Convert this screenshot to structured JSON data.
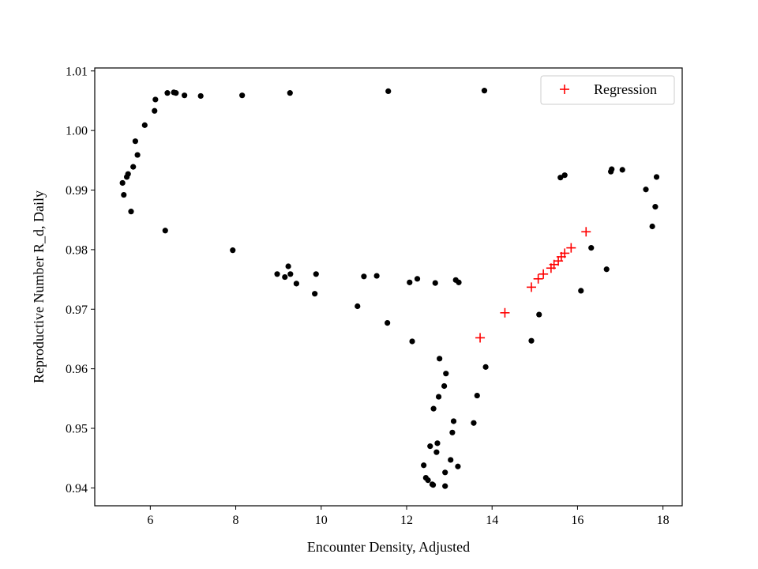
{
  "chart_data": {
    "type": "scatter",
    "title": "",
    "xlabel": "Encounter Density, Adjusted",
    "ylabel": "Reproductive Number R_d, Daily",
    "xlim": [
      4.7,
      18.45
    ],
    "ylim": [
      0.937,
      1.0105
    ],
    "xticks": [
      6,
      8,
      10,
      12,
      14,
      16,
      18
    ],
    "xtick_labels": [
      "6",
      "8",
      "10",
      "12",
      "14",
      "16",
      "18"
    ],
    "yticks": [
      0.94,
      0.95,
      0.96,
      0.97,
      0.98,
      0.99,
      1.0,
      1.01
    ],
    "ytick_labels": [
      "0.94",
      "0.95",
      "0.96",
      "0.97",
      "0.98",
      "0.99",
      "1.00",
      "1.01"
    ],
    "grid": false,
    "legend_position": "top-right",
    "series": [
      {
        "marker": "dot",
        "color": "#000000",
        "points": [
          [
            5.35,
            0.9912
          ],
          [
            5.38,
            0.9892
          ],
          [
            5.45,
            0.9922
          ],
          [
            5.48,
            0.9927
          ],
          [
            5.55,
            0.9864
          ],
          [
            5.6,
            0.9939
          ],
          [
            5.65,
            0.9982
          ],
          [
            5.7,
            0.9959
          ],
          [
            5.87,
            1.0009
          ],
          [
            6.1,
            1.0033
          ],
          [
            6.12,
            1.0052
          ],
          [
            6.35,
            0.9832
          ],
          [
            6.4,
            1.0063
          ],
          [
            6.55,
            1.0064
          ],
          [
            6.6,
            1.0063
          ],
          [
            6.8,
            1.0059
          ],
          [
            7.18,
            1.0058
          ],
          [
            7.93,
            0.9799
          ],
          [
            8.15,
            1.0059
          ],
          [
            8.97,
            0.9759
          ],
          [
            9.15,
            0.9754
          ],
          [
            9.23,
            0.9772
          ],
          [
            9.27,
            1.0063
          ],
          [
            9.28,
            0.9759
          ],
          [
            9.42,
            0.9743
          ],
          [
            9.85,
            0.9726
          ],
          [
            9.88,
            0.9759
          ],
          [
            10.85,
            0.9705
          ],
          [
            11.0,
            0.9755
          ],
          [
            11.3,
            0.9756
          ],
          [
            11.55,
            0.9677
          ],
          [
            11.57,
            1.0066
          ],
          [
            12.07,
            0.9745
          ],
          [
            12.13,
            0.9646
          ],
          [
            12.25,
            0.9751
          ],
          [
            12.4,
            0.9438
          ],
          [
            12.45,
            0.9417
          ],
          [
            12.5,
            0.9413
          ],
          [
            12.55,
            0.947
          ],
          [
            12.6,
            0.9406
          ],
          [
            12.62,
            0.9405
          ],
          [
            12.63,
            0.9533
          ],
          [
            12.67,
            0.9744
          ],
          [
            12.7,
            0.946
          ],
          [
            12.72,
            0.9475
          ],
          [
            12.75,
            0.9553
          ],
          [
            12.77,
            0.9617
          ],
          [
            12.88,
            0.9571
          ],
          [
            12.9,
            0.9426
          ],
          [
            12.92,
            0.9592
          ],
          [
            12.9,
            0.9403
          ],
          [
            13.03,
            0.9447
          ],
          [
            13.07,
            0.9493
          ],
          [
            13.1,
            0.9512
          ],
          [
            13.15,
            0.9749
          ],
          [
            13.22,
            0.9745
          ],
          [
            13.2,
            0.9436
          ],
          [
            13.57,
            0.9509
          ],
          [
            13.65,
            0.9555
          ],
          [
            13.82,
            1.0067
          ],
          [
            13.85,
            0.9603
          ],
          [
            14.92,
            0.9647
          ],
          [
            15.1,
            0.9691
          ],
          [
            15.6,
            0.9921
          ],
          [
            15.7,
            0.9925
          ],
          [
            16.08,
            0.9731
          ],
          [
            16.32,
            0.9803
          ],
          [
            16.68,
            0.9767
          ],
          [
            16.78,
            0.9931
          ],
          [
            16.8,
            0.9935
          ],
          [
            17.05,
            0.9934
          ],
          [
            17.6,
            0.9901
          ],
          [
            17.75,
            0.9839
          ],
          [
            17.82,
            0.9872
          ],
          [
            17.85,
            0.9922
          ]
        ]
      },
      {
        "name": "Regression",
        "marker": "plus",
        "color": "#ff0000",
        "points": [
          [
            13.72,
            0.9652
          ],
          [
            14.3,
            0.9694
          ],
          [
            14.92,
            0.9737
          ],
          [
            15.08,
            0.9751
          ],
          [
            15.2,
            0.9759
          ],
          [
            15.38,
            0.9769
          ],
          [
            15.45,
            0.9775
          ],
          [
            15.55,
            0.9781
          ],
          [
            15.62,
            0.9788
          ],
          [
            15.7,
            0.9794
          ],
          [
            15.85,
            0.9803
          ],
          [
            16.2,
            0.983
          ]
        ]
      }
    ]
  }
}
